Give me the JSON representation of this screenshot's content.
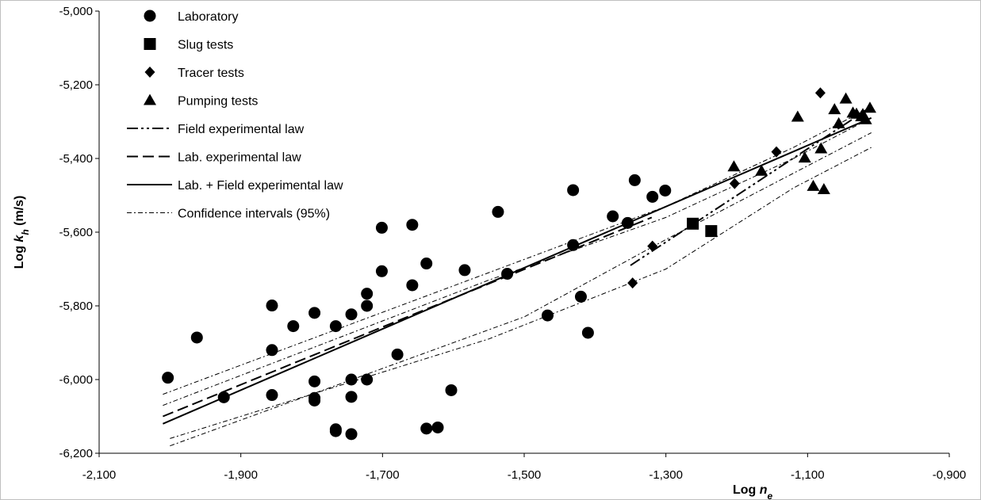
{
  "chart_data": {
    "type": "scatter",
    "xlabel": {
      "main": "Log ",
      "var": "n",
      "sub": "e"
    },
    "ylabel": {
      "main": "Log ",
      "var": "k",
      "sub": "h",
      "unit": " (m/s)"
    },
    "xlim": [
      -2.1,
      -0.9
    ],
    "ylim": [
      -6.2,
      -5.0
    ],
    "x_ticks": [
      -2.1,
      -1.9,
      -1.7,
      -1.5,
      -1.3,
      -1.1,
      -0.9
    ],
    "x_tick_labels": [
      "-2,100",
      "-1,900",
      "-1,700",
      "-1,500",
      "-1,300",
      "-1,100",
      "-0,900"
    ],
    "y_ticks": [
      -5.0,
      -5.2,
      -5.4,
      -5.6,
      -5.8,
      -6.0,
      -6.2
    ],
    "y_tick_labels": [
      "-5,000",
      "-5,200",
      "-5,400",
      "-5,600",
      "-5,800",
      "-6,000",
      "-6,200"
    ],
    "grid": false,
    "legend_position": "top-left",
    "series": [
      {
        "name": "Laboratory",
        "marker": "circle",
        "x": [
          -2.003,
          -1.962,
          -1.924,
          -1.856,
          -1.856,
          -1.826,
          -1.796,
          -1.796,
          -1.796,
          -1.766,
          -1.766,
          -1.766,
          -1.744,
          -1.744,
          -1.744,
          -1.744,
          -1.722,
          -1.722,
          -1.722,
          -1.701,
          -1.701,
          -1.679,
          -1.658,
          -1.658,
          -1.638,
          -1.638,
          -1.622,
          -1.603,
          -1.584,
          -1.537,
          -1.524,
          -1.467,
          -1.431,
          -1.431,
          -1.42,
          -1.41,
          -1.375,
          -1.354,
          -1.344,
          -1.319,
          -1.301,
          -1.856,
          -1.796
        ],
        "y": [
          -5.995,
          -5.886,
          -6.048,
          -5.799,
          -6.042,
          -5.855,
          -5.819,
          -6.005,
          -6.057,
          -5.855,
          -6.135,
          -6.14,
          -5.823,
          -6.0,
          -6.047,
          -6.148,
          -5.767,
          -5.8,
          -6.0,
          -5.588,
          -5.706,
          -5.932,
          -5.58,
          -5.744,
          -5.685,
          -6.133,
          -6.13,
          -6.029,
          -5.703,
          -5.545,
          -5.713,
          -5.826,
          -5.486,
          -5.635,
          -5.775,
          -5.873,
          -5.557,
          -5.575,
          -5.459,
          -5.504,
          -5.487,
          -5.92,
          -6.05
        ]
      },
      {
        "name": "Slug tests",
        "marker": "square",
        "x": [
          -1.262,
          -1.236
        ],
        "y": [
          -5.577,
          -5.597
        ]
      },
      {
        "name": "Tracer tests",
        "marker": "diamond",
        "x": [
          -1.347,
          -1.319,
          -1.203,
          -1.144,
          -1.082
        ],
        "y": [
          -5.738,
          -5.638,
          -5.468,
          -5.382,
          -5.222
        ]
      },
      {
        "name": "Pumping tests",
        "marker": "triangle",
        "x": [
          -1.204,
          -1.165,
          -1.114,
          -1.104,
          -1.092,
          -1.081,
          -1.077,
          -1.062,
          -1.056,
          -1.046,
          -1.036,
          -1.031,
          -1.024,
          -1.018,
          -1.012,
          -1.022
        ],
        "y": [
          -5.422,
          -5.434,
          -5.287,
          -5.398,
          -5.475,
          -5.373,
          -5.484,
          -5.267,
          -5.305,
          -5.238,
          -5.276,
          -5.279,
          -5.286,
          -5.294,
          -5.263,
          -5.28
        ]
      }
    ],
    "lines": [
      {
        "name": "Field experimental law",
        "style": "dash-dot-dot",
        "x": [
          -1.35,
          -1.01
        ],
        "y": [
          -5.69,
          -5.26
        ]
      },
      {
        "name": "Lab. experimental law",
        "style": "dash",
        "x": [
          -2.01,
          -1.32
        ],
        "y": [
          -6.1,
          -5.56
        ]
      },
      {
        "name": "Lab. + Field experimental law",
        "style": "solid",
        "x": [
          -2.01,
          -1.01
        ],
        "y": [
          -6.12,
          -5.29
        ]
      },
      {
        "name": "Confidence intervals (95%)",
        "style": "dash-dot-thin",
        "x": [
          -2.01,
          -1.55,
          -1.3,
          -1.12,
          -1.01
        ],
        "y": [
          -6.04,
          -5.71,
          -5.53,
          -5.37,
          -5.26
        ]
      },
      {
        "name": "",
        "style": "dash-dot-thin",
        "x": [
          -2.01,
          -1.55,
          -1.3,
          -1.12,
          -1.01
        ],
        "y": [
          -6.07,
          -5.73,
          -5.56,
          -5.4,
          -5.29
        ]
      },
      {
        "name": "",
        "style": "dash-dot-thin",
        "x": [
          -2.0,
          -1.55,
          -1.3,
          -1.12,
          -1.01
        ],
        "y": [
          -6.16,
          -5.89,
          -5.7,
          -5.48,
          -5.37
        ]
      },
      {
        "name": "",
        "style": "dash-dot-thin",
        "x": [
          -2.0,
          -1.5,
          -1.3,
          -1.12,
          -1.01
        ],
        "y": [
          -6.18,
          -5.83,
          -5.62,
          -5.44,
          -5.33
        ]
      }
    ]
  },
  "legend": [
    {
      "label": "Laboratory",
      "kind": "circle"
    },
    {
      "label": "Slug tests",
      "kind": "square"
    },
    {
      "label": "Tracer tests",
      "kind": "diamond"
    },
    {
      "label": "Pumping tests",
      "kind": "triangle"
    },
    {
      "label": "Field experimental law",
      "kind": "dash-dot-dot"
    },
    {
      "label": "Lab. experimental law",
      "kind": "dash"
    },
    {
      "label": "Lab. + Field experimental law",
      "kind": "solid"
    },
    {
      "label": "Confidence intervals (95%)",
      "kind": "dash-dot-thin"
    }
  ]
}
